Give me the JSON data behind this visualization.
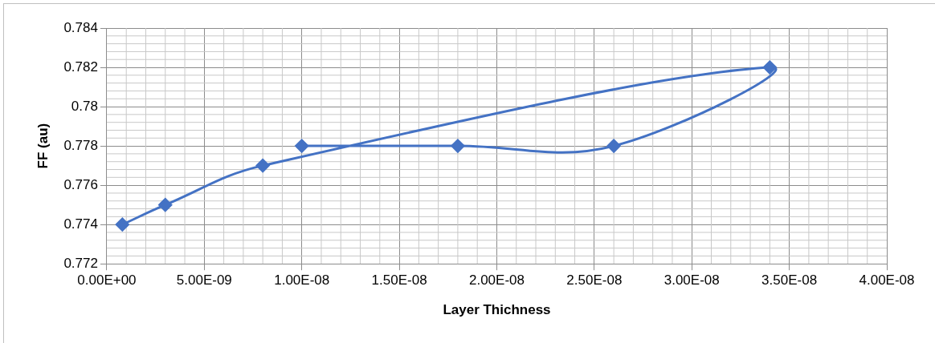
{
  "chart_data": {
    "type": "line",
    "xlabel": "Layer Thichness",
    "ylabel": "FF (au)",
    "x": [
      8e-10,
      3e-09,
      8e-09,
      3.4e-08,
      2.6e-08,
      1.8e-08,
      1e-08
    ],
    "series": [
      {
        "color": "#4472c4",
        "values": [
          0.774,
          0.775,
          0.777,
          0.782,
          0.778,
          0.778,
          0.778
        ]
      }
    ],
    "xlim": [
      0,
      4e-08
    ],
    "xticks": [
      {
        "value": 0,
        "label": "0.00E+00"
      },
      {
        "value": 5e-09,
        "label": "5.00E-09"
      },
      {
        "value": 1e-08,
        "label": "1.00E-08"
      },
      {
        "value": 1.5e-08,
        "label": "1.50E-08"
      },
      {
        "value": 2e-08,
        "label": "2.00E-08"
      },
      {
        "value": 2.5e-08,
        "label": "2.50E-08"
      },
      {
        "value": 3e-08,
        "label": "3.00E-08"
      },
      {
        "value": 3.5e-08,
        "label": "3.50E-08"
      },
      {
        "value": 4e-08,
        "label": "4.00E-08"
      }
    ],
    "ylim": [
      0.772,
      0.784
    ],
    "yticks": [
      0.772,
      0.774,
      0.776,
      0.778,
      0.78,
      0.782,
      0.784
    ],
    "grid": true,
    "legend": false,
    "marker": "diamond",
    "line_style": "solid"
  }
}
